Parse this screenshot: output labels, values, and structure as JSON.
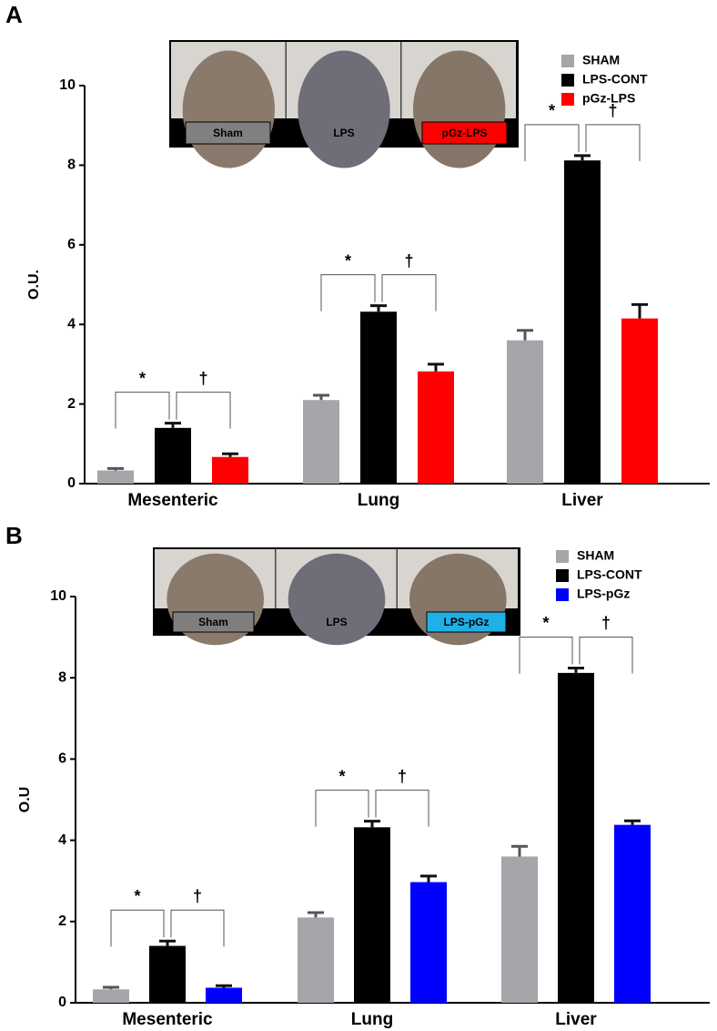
{
  "chart_data": [
    {
      "type": "bar",
      "panel": "A",
      "ylabel": "O.U.",
      "ylim": [
        0,
        10
      ],
      "yticks": [
        0,
        2,
        4,
        6,
        8,
        10
      ],
      "categories": [
        "Mesenteric",
        "Lung",
        "Liver"
      ],
      "series": [
        {
          "name": "SHAM",
          "color": "#a5a5aa",
          "values": [
            0.33,
            2.1,
            3.6
          ],
          "errors": [
            0.05,
            0.12,
            0.25
          ]
        },
        {
          "name": "LPS-CONT",
          "color": "#000000",
          "values": [
            1.4,
            4.32,
            8.12
          ],
          "errors": [
            0.12,
            0.15,
            0.12
          ]
        },
        {
          "name": "pGz-LPS",
          "color": "#ff0000",
          "values": [
            0.67,
            2.82,
            4.15
          ],
          "errors": [
            0.08,
            0.18,
            0.35
          ]
        }
      ],
      "significance": [
        [
          "*",
          "†"
        ],
        [
          "*",
          "†"
        ],
        [
          "*",
          "†"
        ]
      ],
      "inset_labels": [
        "Sham",
        "LPS",
        "pGz-LPS"
      ]
    },
    {
      "type": "bar",
      "panel": "B",
      "ylabel": "O.U",
      "ylim": [
        0,
        10
      ],
      "yticks": [
        0,
        2,
        4,
        6,
        8,
        10
      ],
      "categories": [
        "Mesenteric",
        "Lung",
        "Liver"
      ],
      "series": [
        {
          "name": "SHAM",
          "color": "#a5a5aa",
          "values": [
            0.33,
            2.1,
            3.6
          ],
          "errors": [
            0.05,
            0.12,
            0.25
          ]
        },
        {
          "name": "LPS-CONT",
          "color": "#000000",
          "values": [
            1.4,
            4.32,
            8.12
          ],
          "errors": [
            0.12,
            0.15,
            0.12
          ]
        },
        {
          "name": "LPS-pGz",
          "color": "#0000ff",
          "values": [
            0.37,
            2.97,
            4.38
          ],
          "errors": [
            0.05,
            0.15,
            0.1
          ]
        }
      ],
      "significance": [
        [
          "*",
          "†"
        ],
        [
          "*",
          "†"
        ],
        [
          "*",
          "†"
        ]
      ],
      "inset_labels": [
        "Sham",
        "LPS",
        "LPS-pGz"
      ]
    }
  ]
}
